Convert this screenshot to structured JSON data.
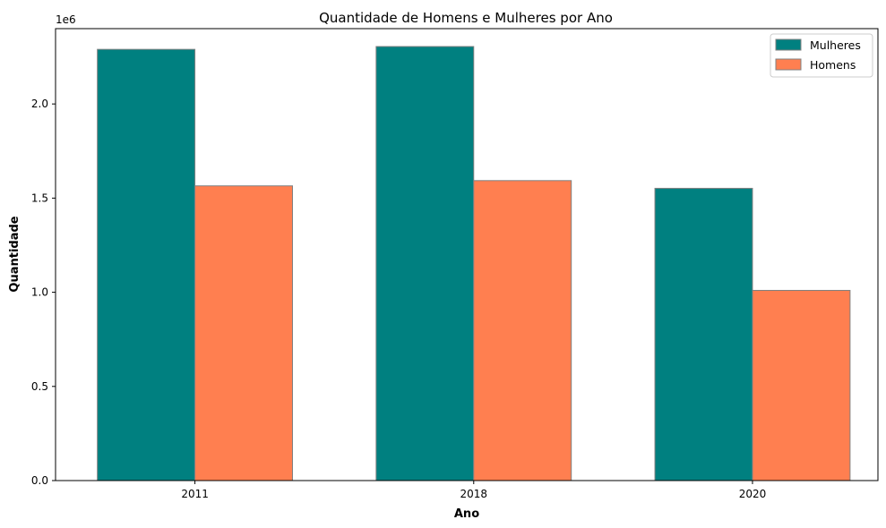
{
  "chart_data": {
    "type": "bar",
    "title": "Quantidade de Homens e Mulheres por Ano",
    "xlabel": "Ano",
    "ylabel": "Quantidade",
    "y_multiplier_label": "1e6",
    "categories": [
      "2011",
      "2018",
      "2020"
    ],
    "series": [
      {
        "name": "Mulheres",
        "values": [
          2290000,
          2305000,
          1552000
        ],
        "color": "#008080"
      },
      {
        "name": "Homens",
        "values": [
          1565000,
          1593000,
          1010000
        ],
        "color": "#FF7F50"
      }
    ],
    "ylim": [
      0,
      2400000
    ],
    "yticks": [
      0,
      500000,
      1000000,
      1500000,
      2000000
    ],
    "ytick_labels": [
      "0.0",
      "0.5",
      "1.0",
      "1.5",
      "2.0"
    ],
    "legend_position": "top-right",
    "grid": false,
    "bar_edge_color": "#808080"
  }
}
